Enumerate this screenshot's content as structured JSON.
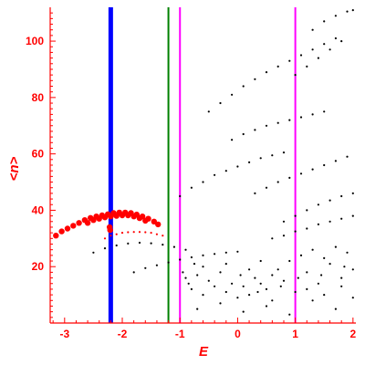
{
  "chart_data": {
    "type": "scatter",
    "title": "",
    "xlabel": "E",
    "ylabel": "<n>",
    "xlim": [
      -3.25,
      2.05
    ],
    "ylim": [
      0,
      112
    ],
    "xticks": [
      -3,
      -2,
      -1,
      0,
      1,
      2
    ],
    "yticks": [
      20,
      40,
      60,
      80,
      100
    ],
    "xtick_labels": [
      "-3",
      "-2",
      "-1",
      "0",
      "1",
      "2"
    ],
    "ytick_labels": [
      "20",
      "40",
      "60",
      "80",
      "100"
    ],
    "grid": false,
    "axis_color": "#ff0000",
    "vertical_lines": [
      {
        "x": -2.2,
        "color": "#0000ff",
        "width": "thick"
      },
      {
        "x": -1.2,
        "color": "#008000",
        "width": "thin"
      },
      {
        "x": -1.0,
        "color": "#ff00ff",
        "width": "thin"
      },
      {
        "x": 1.0,
        "color": "#ff00ff",
        "width": "thin"
      }
    ],
    "series": [
      {
        "color": "#ff0000",
        "marker": "large-dot",
        "points": [
          [
            -3.15,
            31
          ],
          [
            -3.05,
            32.5
          ],
          [
            -2.95,
            33.5
          ],
          [
            -2.85,
            34.5
          ],
          [
            -2.75,
            35.5
          ],
          [
            -2.65,
            36.5
          ],
          [
            -2.55,
            37.3
          ],
          [
            -2.45,
            37.8
          ],
          [
            -2.35,
            38.2
          ],
          [
            -2.25,
            38.6
          ],
          [
            -2.15,
            39
          ],
          [
            -2.05,
            39.2
          ],
          [
            -1.95,
            39.2
          ],
          [
            -1.85,
            39
          ],
          [
            -1.75,
            38.5
          ],
          [
            -1.65,
            37.8
          ],
          [
            -1.55,
            37
          ],
          [
            -1.45,
            36
          ],
          [
            -1.38,
            35
          ],
          [
            -2.6,
            35.5
          ],
          [
            -2.5,
            36.5
          ],
          [
            -2.4,
            37
          ],
          [
            -2.3,
            37.5
          ],
          [
            -2.2,
            37.8
          ],
          [
            -2.1,
            38
          ],
          [
            -2.0,
            38.2
          ],
          [
            -1.9,
            38.2
          ],
          [
            -1.8,
            37.8
          ],
          [
            -1.7,
            37.2
          ],
          [
            -1.6,
            36.3
          ],
          [
            -2.22,
            34
          ],
          [
            -2.21,
            33
          ]
        ]
      },
      {
        "color": "#ff0000",
        "marker": "small-dot",
        "points": [
          [
            -2.3,
            30
          ],
          [
            -2.2,
            31
          ],
          [
            -2.1,
            31.5
          ],
          [
            -2.0,
            32
          ],
          [
            -1.9,
            32.2
          ],
          [
            -1.8,
            32.3
          ],
          [
            -1.7,
            32.3
          ],
          [
            -1.6,
            32.2
          ],
          [
            -1.5,
            32
          ],
          [
            -1.4,
            31.5
          ],
          [
            -1.3,
            31
          ]
        ]
      },
      {
        "color": "#000000",
        "marker": "small-dot",
        "points": [
          [
            -2.5,
            25
          ],
          [
            -2.3,
            26.5
          ],
          [
            -2.1,
            27.5
          ],
          [
            -1.9,
            28.2
          ],
          [
            -1.7,
            28.5
          ],
          [
            -1.5,
            28.3
          ],
          [
            -1.3,
            27.8
          ],
          [
            -1.1,
            27
          ],
          [
            -0.9,
            26
          ],
          [
            -1.8,
            18
          ],
          [
            -1.6,
            19.5
          ],
          [
            -1.4,
            20.5
          ],
          [
            -1.2,
            21.5
          ],
          [
            -1.0,
            22.5
          ],
          [
            -0.8,
            23.3
          ],
          [
            -0.6,
            24
          ],
          [
            -0.4,
            24.5
          ],
          [
            -0.2,
            25
          ],
          [
            0.0,
            25.3
          ],
          [
            -1.0,
            45
          ],
          [
            -0.8,
            48
          ],
          [
            -0.6,
            50
          ],
          [
            -0.4,
            52.5
          ],
          [
            -0.2,
            54
          ],
          [
            0.0,
            55.5
          ],
          [
            0.2,
            57
          ],
          [
            0.4,
            58.5
          ],
          [
            0.6,
            59.5
          ],
          [
            0.8,
            60.5
          ],
          [
            -0.5,
            75
          ],
          [
            -0.3,
            78
          ],
          [
            -0.1,
            81
          ],
          [
            0.1,
            84
          ],
          [
            0.3,
            86.5
          ],
          [
            0.5,
            89
          ],
          [
            0.7,
            91
          ],
          [
            0.9,
            93
          ],
          [
            1.1,
            95
          ],
          [
            1.3,
            97
          ],
          [
            1.5,
            99
          ],
          [
            1.7,
            101
          ],
          [
            -0.1,
            65
          ],
          [
            0.1,
            67
          ],
          [
            0.3,
            68.5
          ],
          [
            0.5,
            70
          ],
          [
            0.7,
            71
          ],
          [
            0.9,
            72
          ],
          [
            1.1,
            73
          ],
          [
            1.3,
            74
          ],
          [
            1.5,
            75
          ],
          [
            1.0,
            88
          ],
          [
            1.2,
            91
          ],
          [
            1.4,
            94
          ],
          [
            1.6,
            97
          ],
          [
            1.8,
            100
          ],
          [
            1.3,
            104
          ],
          [
            1.5,
            107
          ],
          [
            1.7,
            109
          ],
          [
            1.9,
            110.5
          ],
          [
            2.0,
            111
          ],
          [
            0.3,
            46
          ],
          [
            0.5,
            48
          ],
          [
            0.7,
            50
          ],
          [
            0.9,
            51.5
          ],
          [
            1.1,
            53
          ],
          [
            1.3,
            54.5
          ],
          [
            1.5,
            56
          ],
          [
            1.7,
            57.5
          ],
          [
            1.9,
            59
          ],
          [
            0.8,
            36
          ],
          [
            1.0,
            38
          ],
          [
            1.2,
            40
          ],
          [
            1.4,
            42
          ],
          [
            1.6,
            43.5
          ],
          [
            1.8,
            45
          ],
          [
            2.0,
            46
          ],
          [
            0.6,
            30
          ],
          [
            0.8,
            31
          ],
          [
            1.0,
            32.5
          ],
          [
            1.2,
            33.5
          ],
          [
            1.4,
            35
          ],
          [
            1.6,
            36
          ],
          [
            1.8,
            37
          ],
          [
            2.0,
            38
          ],
          [
            -0.9,
            16
          ],
          [
            -0.7,
            17
          ],
          [
            -0.5,
            15
          ],
          [
            -0.3,
            18
          ],
          [
            -0.1,
            14
          ],
          [
            0.1,
            13
          ],
          [
            0.3,
            16
          ],
          [
            0.5,
            12
          ],
          [
            0.7,
            19
          ],
          [
            0.9,
            22
          ],
          [
            -0.8,
            12
          ],
          [
            -0.6,
            10
          ],
          [
            -0.4,
            13
          ],
          [
            -0.2,
            11
          ],
          [
            0.0,
            9
          ],
          [
            0.2,
            10
          ],
          [
            0.4,
            14
          ],
          [
            0.6,
            8
          ],
          [
            0.8,
            15
          ],
          [
            1.0,
            11
          ],
          [
            1.2,
            18
          ],
          [
            1.4,
            14
          ],
          [
            1.6,
            21
          ],
          [
            1.8,
            16
          ],
          [
            2.0,
            19
          ],
          [
            1.1,
            24
          ],
          [
            1.3,
            26
          ],
          [
            1.5,
            23
          ],
          [
            1.7,
            27
          ],
          [
            1.9,
            25
          ],
          [
            -0.7,
            5
          ],
          [
            -0.3,
            7
          ],
          [
            0.1,
            4
          ],
          [
            0.5,
            6
          ],
          [
            0.9,
            3
          ],
          [
            1.3,
            8
          ],
          [
            1.7,
            5
          ],
          [
            2.0,
            9
          ],
          [
            -0.6,
            20
          ],
          [
            -0.2,
            21
          ],
          [
            0.2,
            19
          ],
          [
            0.4,
            22
          ],
          [
            0.6,
            17
          ],
          [
            1.2,
            12
          ],
          [
            1.5,
            10
          ],
          [
            1.8,
            13
          ],
          [
            -0.95,
            18
          ],
          [
            -0.85,
            14
          ],
          [
            -0.75,
            21
          ],
          [
            0.05,
            17
          ],
          [
            0.35,
            11
          ],
          [
            0.75,
            13
          ],
          [
            1.05,
            16
          ],
          [
            1.45,
            17
          ],
          [
            1.85,
            20
          ]
        ]
      }
    ]
  }
}
